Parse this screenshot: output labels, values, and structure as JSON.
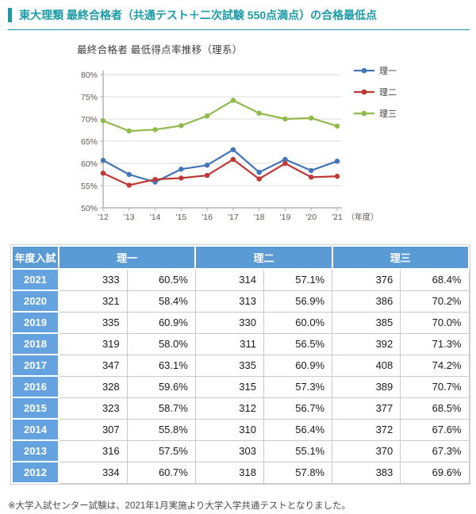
{
  "accent_color": "#1b9ba8",
  "header": {
    "title": "東大理類 最終合格者（共通テスト＋二次試験 550点満点）の合格最低点"
  },
  "chart_data": {
    "type": "line",
    "title": "最終合格者 最低得点率推移（理系）",
    "x": [
      "'12",
      "'13",
      "'14",
      "'15",
      "'16",
      "'17",
      "'18",
      "'19",
      "'20",
      "'21"
    ],
    "x_axis_suffix": "（年度）",
    "ylim": [
      50,
      80
    ],
    "ytick_step": 5,
    "ytick_suffix": "%",
    "grid": true,
    "legend_position": "top-right",
    "series": [
      {
        "name": "理一",
        "color": "#4274b8",
        "values": [
          60.7,
          57.5,
          55.8,
          58.7,
          59.6,
          63.1,
          58.0,
          60.9,
          58.4,
          60.5
        ]
      },
      {
        "name": "理二",
        "color": "#bf3a35",
        "values": [
          57.8,
          55.1,
          56.4,
          56.7,
          57.3,
          60.9,
          56.5,
          60.0,
          56.9,
          57.1
        ]
      },
      {
        "name": "理三",
        "color": "#8fbb4b",
        "values": [
          69.6,
          67.3,
          67.6,
          68.5,
          70.7,
          74.2,
          71.3,
          70.0,
          70.2,
          68.4
        ]
      }
    ]
  },
  "table": {
    "col_year": "年度入試",
    "groups": [
      "理一",
      "理二",
      "理三"
    ],
    "rows": [
      [
        "2021",
        "333",
        "60.5%",
        "314",
        "57.1%",
        "376",
        "68.4%"
      ],
      [
        "2020",
        "321",
        "58.4%",
        "313",
        "56.9%",
        "386",
        "70.2%"
      ],
      [
        "2019",
        "335",
        "60.9%",
        "330",
        "60.0%",
        "385",
        "70.0%"
      ],
      [
        "2018",
        "319",
        "58.0%",
        "311",
        "56.5%",
        "392",
        "71.3%"
      ],
      [
        "2017",
        "347",
        "63.1%",
        "335",
        "60.9%",
        "408",
        "74.2%"
      ],
      [
        "2016",
        "328",
        "59.6%",
        "315",
        "57.3%",
        "389",
        "70.7%"
      ],
      [
        "2015",
        "323",
        "58.7%",
        "312",
        "56.7%",
        "377",
        "68.5%"
      ],
      [
        "2014",
        "307",
        "55.8%",
        "310",
        "56.4%",
        "372",
        "67.6%"
      ],
      [
        "2013",
        "316",
        "57.5%",
        "303",
        "55.1%",
        "370",
        "67.3%"
      ],
      [
        "2012",
        "334",
        "60.7%",
        "318",
        "57.8%",
        "383",
        "69.6%"
      ]
    ]
  },
  "footnote": "※大学入試センター試験は、2021年1月実施より大学入学共通テストとなりました。"
}
